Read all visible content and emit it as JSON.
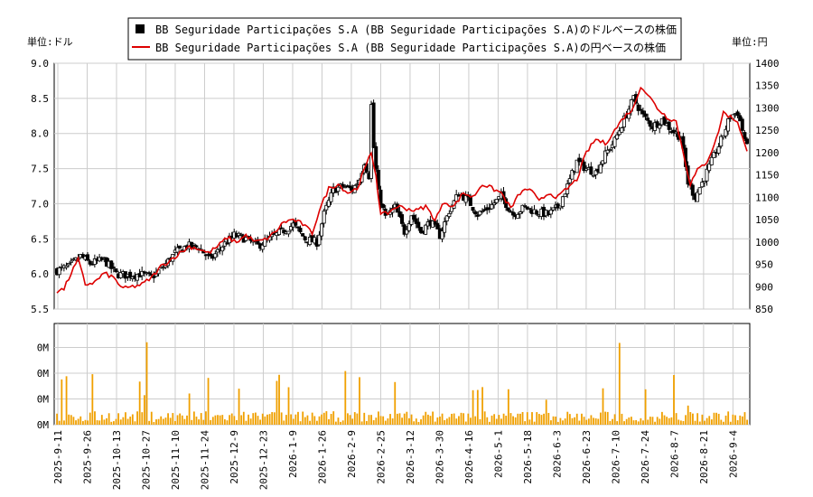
{
  "chart_data": {
    "type": "candlestick",
    "legend": {
      "placement": "top",
      "entries": [
        {
          "label": "BB Seguridade Participações S.A (BB Seguridade Participações S.A)のドルベースの株価",
          "marker": "box",
          "color": "#000000"
        },
        {
          "label": "BB Seguridade Participações S.A (BB Seguridade Participações S.A)の円ベースの株価",
          "marker": "line",
          "color": "#dd0000"
        }
      ]
    },
    "left_unit_label": "単位:ドル",
    "right_unit_label": "単位:円",
    "price_axis_left": {
      "range": [
        5.5,
        9.0
      ],
      "ticks": [
        "5.5",
        "6.0",
        "6.5",
        "7.0",
        "7.5",
        "8.0",
        "8.5",
        "9.0"
      ]
    },
    "price_axis_right": {
      "range": [
        850,
        1400
      ],
      "ticks": [
        "850",
        "900",
        "950",
        "1000",
        "1050",
        "1100",
        "1150",
        "1200",
        "1250",
        "1300",
        "1350",
        "1400"
      ]
    },
    "volume_axis": {
      "ticks": [
        "0M",
        "0M",
        "0M",
        "0M"
      ]
    },
    "x_tick_labels": [
      "2025-9-11",
      "2025-9-26",
      "2025-10-13",
      "2025-10-27",
      "2025-11-10",
      "2025-11-24",
      "2025-12-9",
      "2025-12-23",
      "2026-1-9",
      "2026-1-26",
      "2026-2-9",
      "2026-2-25",
      "2026-3-12",
      "2026-3-30",
      "2026-4-16",
      "2026-5-1",
      "2026-5-18",
      "2026-6-3",
      "2026-6-23",
      "2026-7-10",
      "2026-7-24",
      "2026-8-7",
      "2026-8-21",
      "2026-9-4"
    ],
    "grid": true,
    "colors": {
      "up": "#ffffff",
      "down": "#000000",
      "yen_line": "#dd0000",
      "volume": "#f0a000",
      "grid": "#cccccc"
    },
    "dollar_close_keypoints": [
      [
        0,
        6.05
      ],
      [
        5,
        6.1
      ],
      [
        10,
        6.25
      ],
      [
        14,
        6.15
      ],
      [
        20,
        6.2
      ],
      [
        25,
        6.0
      ],
      [
        30,
        5.98
      ],
      [
        35,
        6.0
      ],
      [
        40,
        5.95
      ],
      [
        45,
        6.1
      ],
      [
        50,
        6.3
      ],
      [
        55,
        6.4
      ],
      [
        60,
        6.38
      ],
      [
        65,
        6.2
      ],
      [
        70,
        6.4
      ],
      [
        75,
        6.55
      ],
      [
        80,
        6.5
      ],
      [
        85,
        6.4
      ],
      [
        90,
        6.5
      ],
      [
        95,
        6.6
      ],
      [
        100,
        6.7
      ],
      [
        105,
        6.5
      ],
      [
        110,
        6.45
      ],
      [
        113,
        6.85
      ],
      [
        117,
        7.2
      ],
      [
        121,
        7.25
      ],
      [
        125,
        7.2
      ],
      [
        128,
        7.35
      ],
      [
        130,
        7.6
      ],
      [
        132,
        7.4
      ],
      [
        133,
        8.4
      ],
      [
        134,
        7.8
      ],
      [
        136,
        7.15
      ],
      [
        139,
        6.8
      ],
      [
        143,
        6.95
      ],
      [
        147,
        6.6
      ],
      [
        150,
        6.85
      ],
      [
        154,
        6.6
      ],
      [
        158,
        6.75
      ],
      [
        162,
        6.55
      ],
      [
        166,
        6.9
      ],
      [
        170,
        7.15
      ],
      [
        174,
        7.05
      ],
      [
        178,
        6.85
      ],
      [
        183,
        6.95
      ],
      [
        188,
        7.1
      ],
      [
        193,
        6.85
      ],
      [
        198,
        6.95
      ],
      [
        203,
        6.88
      ],
      [
        208,
        6.85
      ],
      [
        212,
        6.95
      ],
      [
        216,
        7.25
      ],
      [
        220,
        7.6
      ],
      [
        224,
        7.5
      ],
      [
        228,
        7.45
      ],
      [
        232,
        7.7
      ],
      [
        236,
        7.9
      ],
      [
        240,
        8.2
      ],
      [
        244,
        8.5
      ],
      [
        248,
        8.25
      ],
      [
        252,
        8.1
      ],
      [
        256,
        8.2
      ],
      [
        260,
        8.05
      ],
      [
        264,
        7.95
      ],
      [
        267,
        7.3
      ],
      [
        270,
        7.1
      ],
      [
        273,
        7.3
      ],
      [
        277,
        7.6
      ],
      [
        281,
        7.9
      ],
      [
        285,
        8.25
      ],
      [
        288,
        8.3
      ],
      [
        292,
        7.8
      ]
    ],
    "yen_line_keypoints": [
      [
        0,
        890
      ],
      [
        3,
        895
      ],
      [
        6,
        930
      ],
      [
        9,
        960
      ],
      [
        12,
        905
      ],
      [
        16,
        910
      ],
      [
        20,
        930
      ],
      [
        24,
        920
      ],
      [
        28,
        895
      ],
      [
        32,
        900
      ],
      [
        36,
        905
      ],
      [
        40,
        920
      ],
      [
        44,
        945
      ],
      [
        48,
        960
      ],
      [
        52,
        975
      ],
      [
        56,
        990
      ],
      [
        60,
        985
      ],
      [
        64,
        975
      ],
      [
        68,
        990
      ],
      [
        72,
        1010
      ],
      [
        76,
        1000
      ],
      [
        80,
        1015
      ],
      [
        84,
        1000
      ],
      [
        88,
        1005
      ],
      [
        92,
        1020
      ],
      [
        96,
        1045
      ],
      [
        100,
        1050
      ],
      [
        104,
        1040
      ],
      [
        108,
        1020
      ],
      [
        111,
        1070
      ],
      [
        115,
        1120
      ],
      [
        119,
        1130
      ],
      [
        123,
        1110
      ],
      [
        127,
        1120
      ],
      [
        130,
        1160
      ],
      [
        133,
        1200
      ],
      [
        135,
        1150
      ],
      [
        137,
        1060
      ],
      [
        140,
        1065
      ],
      [
        144,
        1080
      ],
      [
        148,
        1075
      ],
      [
        152,
        1070
      ],
      [
        156,
        1080
      ],
      [
        160,
        1050
      ],
      [
        164,
        1090
      ],
      [
        168,
        1080
      ],
      [
        172,
        1110
      ],
      [
        176,
        1100
      ],
      [
        180,
        1130
      ],
      [
        184,
        1120
      ],
      [
        188,
        1110
      ],
      [
        192,
        1075
      ],
      [
        196,
        1110
      ],
      [
        200,
        1120
      ],
      [
        204,
        1090
      ],
      [
        208,
        1110
      ],
      [
        212,
        1100
      ],
      [
        216,
        1120
      ],
      [
        220,
        1140
      ],
      [
        224,
        1200
      ],
      [
        228,
        1230
      ],
      [
        232,
        1220
      ],
      [
        236,
        1250
      ],
      [
        240,
        1280
      ],
      [
        244,
        1300
      ],
      [
        247,
        1350
      ],
      [
        250,
        1330
      ],
      [
        254,
        1300
      ],
      [
        258,
        1280
      ],
      [
        262,
        1270
      ],
      [
        265,
        1200
      ],
      [
        268,
        1130
      ],
      [
        271,
        1160
      ],
      [
        275,
        1180
      ],
      [
        279,
        1230
      ],
      [
        282,
        1290
      ],
      [
        285,
        1280
      ],
      [
        288,
        1270
      ],
      [
        292,
        1200
      ]
    ]
  }
}
